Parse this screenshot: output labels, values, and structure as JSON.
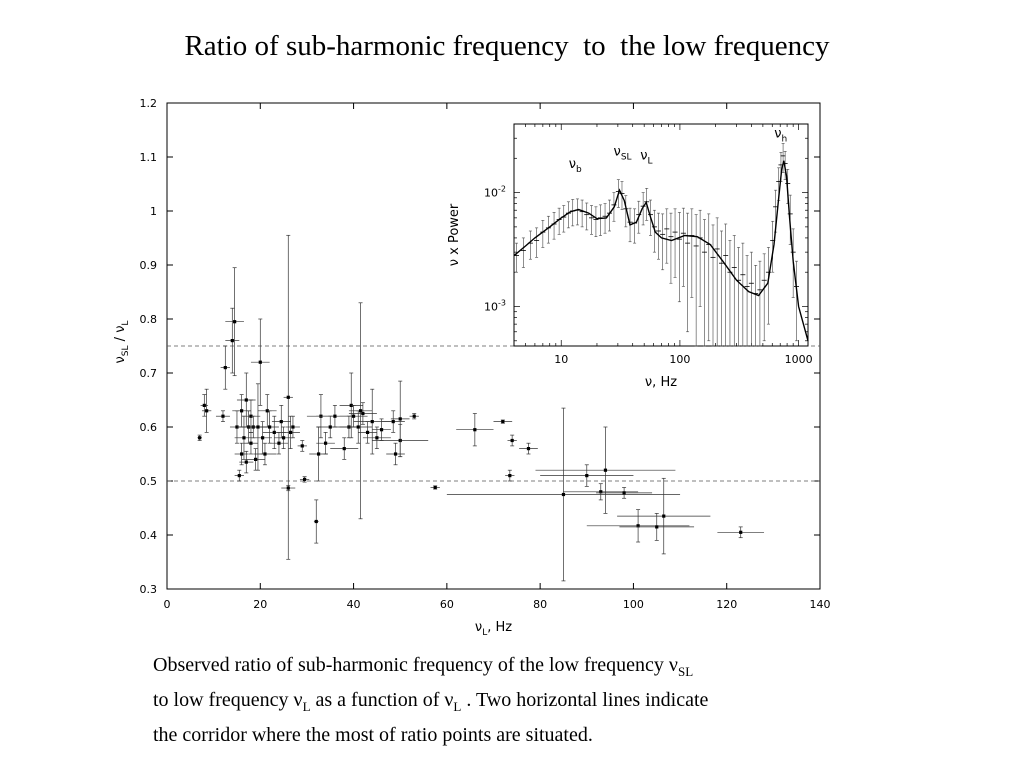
{
  "slide": {
    "title": "Ratio of sub-harmonic frequency  to  the low frequency",
    "caption": {
      "line1_a": "Observed ratio of sub-harmonic frequency  of the low frequency ν",
      "line1_sub": "SL",
      "line2_a": "to  low frequency ν",
      "line2_sub1": "L",
      "line2_b": "  as a function of ν",
      "line2_sub2": "L",
      "line2_c": " . Two horizontal lines indicate",
      "line3": "the corridor where the most of ratio points are  situated."
    }
  },
  "chart_data": [
    {
      "type": "scatter",
      "title": "",
      "xlabel": "ν",
      "xlabel_sub": "L",
      "xlabel_suffix": ", Hz",
      "ylabel": "ν",
      "ylabel_sub1": "SL",
      "ylabel_mid": " / ν",
      "ylabel_sub2": "L",
      "xlim": [
        0,
        140
      ],
      "ylim": [
        0.3,
        1.2
      ],
      "xticks": [
        0,
        20,
        40,
        60,
        80,
        100,
        120,
        140
      ],
      "xtick_labels": [
        "0",
        "20",
        "40",
        "60",
        "80",
        "100",
        "120",
        "140"
      ],
      "yticks": [
        0.3,
        0.4,
        0.5,
        0.6,
        0.7,
        0.8,
        0.9,
        1,
        1.1,
        1.2
      ],
      "ytick_labels": [
        "0.3",
        "0.4",
        "0.5",
        "0.6",
        "0.7",
        "0.8",
        "0.9",
        "1",
        "1.1",
        "1.2"
      ],
      "reference_lines_y": [
        0.75,
        0.5
      ],
      "points": [
        {
          "x": 7.0,
          "y": 0.58,
          "xerr": 0.5,
          "yerr": 0.005
        },
        {
          "x": 8.0,
          "y": 0.64,
          "xerr": 0.8,
          "yerr": 0.02
        },
        {
          "x": 8.5,
          "y": 0.63,
          "xerr": 1.0,
          "yerr": 0.04
        },
        {
          "x": 12.0,
          "y": 0.62,
          "xerr": 1.5,
          "yerr": 0.01
        },
        {
          "x": 12.5,
          "y": 0.71,
          "xerr": 1.0,
          "yerr": 0.04
        },
        {
          "x": 14.0,
          "y": 0.76,
          "xerr": 1.5,
          "yerr": 0.06
        },
        {
          "x": 14.5,
          "y": 0.795,
          "xerr": 2.0,
          "yerr": 0.1
        },
        {
          "x": 15.0,
          "y": 0.6,
          "xerr": 1.5,
          "yerr": 0.03
        },
        {
          "x": 15.5,
          "y": 0.51,
          "xerr": 1.0,
          "yerr": 0.01
        },
        {
          "x": 16.0,
          "y": 0.63,
          "xerr": 2.0,
          "yerr": 0.03
        },
        {
          "x": 16.0,
          "y": 0.55,
          "xerr": 1.5,
          "yerr": 0.02
        },
        {
          "x": 16.5,
          "y": 0.58,
          "xerr": 2.0,
          "yerr": 0.04
        },
        {
          "x": 17.0,
          "y": 0.65,
          "xerr": 2.0,
          "yerr": 0.05
        },
        {
          "x": 17.0,
          "y": 0.535,
          "xerr": 1.5,
          "yerr": 0.02
        },
        {
          "x": 17.5,
          "y": 0.6,
          "xerr": 2.5,
          "yerr": 0.03
        },
        {
          "x": 18.0,
          "y": 0.62,
          "xerr": 2.0,
          "yerr": 0.03
        },
        {
          "x": 18.0,
          "y": 0.57,
          "xerr": 1.5,
          "yerr": 0.02
        },
        {
          "x": 18.5,
          "y": 0.6,
          "xerr": 3.0,
          "yerr": 0.02
        },
        {
          "x": 19.0,
          "y": 0.54,
          "xerr": 2.0,
          "yerr": 0.02
        },
        {
          "x": 19.5,
          "y": 0.6,
          "xerr": 2.0,
          "yerr": 0.08
        },
        {
          "x": 20.0,
          "y": 0.72,
          "xerr": 2.0,
          "yerr": 0.08
        },
        {
          "x": 20.5,
          "y": 0.58,
          "xerr": 2.0,
          "yerr": 0.03
        },
        {
          "x": 21.0,
          "y": 0.55,
          "xerr": 2.5,
          "yerr": 0.02
        },
        {
          "x": 21.5,
          "y": 0.63,
          "xerr": 2.0,
          "yerr": 0.03
        },
        {
          "x": 22.0,
          "y": 0.6,
          "xerr": 2.0,
          "yerr": 0.03
        },
        {
          "x": 23.0,
          "y": 0.59,
          "xerr": 2.5,
          "yerr": 0.03
        },
        {
          "x": 24.0,
          "y": 0.57,
          "xerr": 2.0,
          "yerr": 0.02
        },
        {
          "x": 24.5,
          "y": 0.61,
          "xerr": 2.0,
          "yerr": 0.03
        },
        {
          "x": 25.0,
          "y": 0.58,
          "xerr": 2.0,
          "yerr": 0.02
        },
        {
          "x": 26.0,
          "y": 0.655,
          "xerr": 1.0,
          "yerr": 0.3
        },
        {
          "x": 26.5,
          "y": 0.59,
          "xerr": 2.0,
          "yerr": 0.03
        },
        {
          "x": 26.0,
          "y": 0.487,
          "xerr": 1.5,
          "yerr": 0.005
        },
        {
          "x": 27.0,
          "y": 0.6,
          "xerr": 1.5,
          "yerr": 0.02
        },
        {
          "x": 29.0,
          "y": 0.565,
          "xerr": 1.0,
          "yerr": 0.01
        },
        {
          "x": 29.5,
          "y": 0.503,
          "xerr": 1.0,
          "yerr": 0.005
        },
        {
          "x": 32.0,
          "y": 0.425,
          "xerr": 0.5,
          "yerr": 0.04
        },
        {
          "x": 32.5,
          "y": 0.55,
          "xerr": 2.0,
          "yerr": 0.05
        },
        {
          "x": 33.0,
          "y": 0.62,
          "xerr": 3.0,
          "yerr": 0.04
        },
        {
          "x": 34.0,
          "y": 0.57,
          "xerr": 2.0,
          "yerr": 0.02
        },
        {
          "x": 35.0,
          "y": 0.6,
          "xerr": 3.0,
          "yerr": 0.02
        },
        {
          "x": 36.0,
          "y": 0.62,
          "xerr": 4.0,
          "yerr": 0.02
        },
        {
          "x": 38.0,
          "y": 0.56,
          "xerr": 3.0,
          "yerr": 0.02
        },
        {
          "x": 39.0,
          "y": 0.6,
          "xerr": 2.0,
          "yerr": 0.02
        },
        {
          "x": 39.5,
          "y": 0.64,
          "xerr": 2.5,
          "yerr": 0.06
        },
        {
          "x": 40.0,
          "y": 0.62,
          "xerr": 3.0,
          "yerr": 0.02
        },
        {
          "x": 41.0,
          "y": 0.6,
          "xerr": 3.0,
          "yerr": 0.03
        },
        {
          "x": 41.5,
          "y": 0.63,
          "xerr": 2.5,
          "yerr": 0.2
        },
        {
          "x": 42.0,
          "y": 0.625,
          "xerr": 3.0,
          "yerr": 0.02
        },
        {
          "x": 43.0,
          "y": 0.59,
          "xerr": 2.0,
          "yerr": 0.02
        },
        {
          "x": 44.0,
          "y": 0.61,
          "xerr": 4.0,
          "yerr": 0.06
        },
        {
          "x": 45.0,
          "y": 0.58,
          "xerr": 3.0,
          "yerr": 0.02
        },
        {
          "x": 46.0,
          "y": 0.595,
          "xerr": 2.0,
          "yerr": 0.02
        },
        {
          "x": 48.5,
          "y": 0.61,
          "xerr": 2.5,
          "yerr": 0.02
        },
        {
          "x": 49.0,
          "y": 0.55,
          "xerr": 2.0,
          "yerr": 0.02
        },
        {
          "x": 50.0,
          "y": 0.575,
          "xerr": 6.0,
          "yerr": 0.03
        },
        {
          "x": 50.0,
          "y": 0.615,
          "xerr": 2.0,
          "yerr": 0.07
        },
        {
          "x": 53.0,
          "y": 0.62,
          "xerr": 1.0,
          "yerr": 0.005
        },
        {
          "x": 57.5,
          "y": 0.488,
          "xerr": 1.0,
          "yerr": 0.003
        },
        {
          "x": 66.0,
          "y": 0.595,
          "xerr": 4.0,
          "yerr": 0.03
        },
        {
          "x": 72.0,
          "y": 0.61,
          "xerr": 2.0,
          "yerr": 0.003
        },
        {
          "x": 73.5,
          "y": 0.51,
          "xerr": 1.0,
          "yerr": 0.01
        },
        {
          "x": 74.0,
          "y": 0.575,
          "xerr": 1.0,
          "yerr": 0.01
        },
        {
          "x": 77.5,
          "y": 0.56,
          "xerr": 2.0,
          "yerr": 0.01
        },
        {
          "x": 85.0,
          "y": 0.475,
          "xerr": 25.0,
          "yerr": 0.16
        },
        {
          "x": 90.0,
          "y": 0.51,
          "xerr": 10.0,
          "yerr": 0.02
        },
        {
          "x": 94.0,
          "y": 0.52,
          "xerr": 15.0,
          "yerr": 0.08
        },
        {
          "x": 93.0,
          "y": 0.48,
          "xerr": 8.0,
          "yerr": 0.015
        },
        {
          "x": 98.0,
          "y": 0.478,
          "xerr": 6.0,
          "yerr": 0.01
        },
        {
          "x": 101.0,
          "y": 0.417,
          "xerr": 11.0,
          "yerr": 0.03
        },
        {
          "x": 105.0,
          "y": 0.415,
          "xerr": 8.0,
          "yerr": 0.025
        },
        {
          "x": 106.5,
          "y": 0.435,
          "xerr": 10.0,
          "yerr": 0.07
        },
        {
          "x": 123.0,
          "y": 0.405,
          "xerr": 5.0,
          "yerr": 0.01
        }
      ]
    },
    {
      "type": "line",
      "title": "",
      "inset": true,
      "xlabel": "ν, Hz",
      "ylabel": "ν x Power",
      "xscale": "log",
      "yscale": "log",
      "xlim": [
        4,
        1200
      ],
      "ylim": [
        0.00045,
        0.04
      ],
      "xticks": [
        10,
        100,
        1000
      ],
      "xtick_labels": [
        "10",
        "100",
        "1000"
      ],
      "yticks": [
        0.001,
        0.01
      ],
      "ytick_base": "10",
      "ytick_exponents": [
        "-3",
        "-2"
      ],
      "annotations": [
        {
          "text": "ν",
          "sub": "b",
          "x": 13
        },
        {
          "text": "ν",
          "sub": "SL",
          "x": 31
        },
        {
          "text": "ν",
          "sub": "L",
          "x": 52
        },
        {
          "text": "ν",
          "sub": "h",
          "x": 700
        }
      ],
      "model_curve": {
        "x": [
          4,
          5,
          6,
          8,
          10,
          12,
          14,
          17,
          20,
          24,
          28,
          31,
          34,
          38,
          43,
          48,
          52,
          56,
          62,
          70,
          85,
          110,
          140,
          180,
          230,
          300,
          380,
          460,
          550,
          620,
          680,
          720,
          750,
          790,
          840,
          900,
          1000,
          1200
        ],
        "y": [
          0.0028,
          0.0034,
          0.004,
          0.005,
          0.006,
          0.0068,
          0.0071,
          0.0066,
          0.0059,
          0.006,
          0.0075,
          0.0105,
          0.0085,
          0.0052,
          0.0055,
          0.0072,
          0.0082,
          0.0063,
          0.0045,
          0.004,
          0.0038,
          0.0042,
          0.0041,
          0.0035,
          0.0025,
          0.0017,
          0.00135,
          0.00125,
          0.0016,
          0.0035,
          0.009,
          0.016,
          0.019,
          0.014,
          0.006,
          0.0025,
          0.001,
          0.0005
        ]
      },
      "points": [
        {
          "x": 4.2,
          "y": 0.0028,
          "yerr": 0.0008
        },
        {
          "x": 4.8,
          "y": 0.0031,
          "yerr": 0.0009
        },
        {
          "x": 5.5,
          "y": 0.0036,
          "yerr": 0.001
        },
        {
          "x": 6.2,
          "y": 0.0038,
          "yerr": 0.0011
        },
        {
          "x": 7.0,
          "y": 0.0045,
          "yerr": 0.0012
        },
        {
          "x": 7.8,
          "y": 0.0049,
          "yerr": 0.0013
        },
        {
          "x": 8.7,
          "y": 0.0053,
          "yerr": 0.0014
        },
        {
          "x": 9.6,
          "y": 0.0058,
          "yerr": 0.0015
        },
        {
          "x": 10.5,
          "y": 0.0061,
          "yerr": 0.0016
        },
        {
          "x": 11.5,
          "y": 0.0066,
          "yerr": 0.0017
        },
        {
          "x": 12.5,
          "y": 0.0069,
          "yerr": 0.0018
        },
        {
          "x": 13.7,
          "y": 0.007,
          "yerr": 0.0018
        },
        {
          "x": 15.0,
          "y": 0.0068,
          "yerr": 0.0018
        },
        {
          "x": 16.4,
          "y": 0.0064,
          "yerr": 0.0017
        },
        {
          "x": 18.0,
          "y": 0.006,
          "yerr": 0.0017
        },
        {
          "x": 19.6,
          "y": 0.0058,
          "yerr": 0.0017
        },
        {
          "x": 21.4,
          "y": 0.006,
          "yerr": 0.0018
        },
        {
          "x": 23.4,
          "y": 0.0062,
          "yerr": 0.0018
        },
        {
          "x": 25.5,
          "y": 0.0066,
          "yerr": 0.002
        },
        {
          "x": 27.8,
          "y": 0.0078,
          "yerr": 0.0022
        },
        {
          "x": 30.3,
          "y": 0.0102,
          "yerr": 0.0028
        },
        {
          "x": 32.5,
          "y": 0.0098,
          "yerr": 0.0027
        },
        {
          "x": 35.0,
          "y": 0.0072,
          "yerr": 0.0022
        },
        {
          "x": 38.0,
          "y": 0.0055,
          "yerr": 0.0018
        },
        {
          "x": 41.5,
          "y": 0.0054,
          "yerr": 0.0018
        },
        {
          "x": 45.0,
          "y": 0.0064,
          "yerr": 0.002
        },
        {
          "x": 49.0,
          "y": 0.0076,
          "yerr": 0.0024
        },
        {
          "x": 52.5,
          "y": 0.0083,
          "yerr": 0.0026
        },
        {
          "x": 56.5,
          "y": 0.0064,
          "yerr": 0.0022
        },
        {
          "x": 61.0,
          "y": 0.005,
          "yerr": 0.002
        },
        {
          "x": 66.0,
          "y": 0.0046,
          "yerr": 0.002
        },
        {
          "x": 71.5,
          "y": 0.0043,
          "yerr": 0.0022
        },
        {
          "x": 77.5,
          "y": 0.0048,
          "yerr": 0.0024
        },
        {
          "x": 84.0,
          "y": 0.0041,
          "yerr": 0.0025
        },
        {
          "x": 91.0,
          "y": 0.0045,
          "yerr": 0.0027
        },
        {
          "x": 99.0,
          "y": 0.0039,
          "yerr": 0.0028
        },
        {
          "x": 107.0,
          "y": 0.0044,
          "yerr": 0.0029
        },
        {
          "x": 116.0,
          "y": 0.0036,
          "yerr": 0.003
        },
        {
          "x": 126.0,
          "y": 0.0042,
          "yerr": 0.003
        },
        {
          "x": 137.0,
          "y": 0.0034,
          "yerr": 0.003
        },
        {
          "x": 148.0,
          "y": 0.004,
          "yerr": 0.003
        },
        {
          "x": 161.0,
          "y": 0.003,
          "yerr": 0.0028
        },
        {
          "x": 175.0,
          "y": 0.0035,
          "yerr": 0.003
        },
        {
          "x": 190.0,
          "y": 0.0027,
          "yerr": 0.0025
        },
        {
          "x": 206.0,
          "y": 0.0032,
          "yerr": 0.0028
        },
        {
          "x": 224.0,
          "y": 0.0024,
          "yerr": 0.0022
        },
        {
          "x": 243.0,
          "y": 0.0028,
          "yerr": 0.0025
        },
        {
          "x": 264.0,
          "y": 0.002,
          "yerr": 0.0018
        },
        {
          "x": 287.0,
          "y": 0.0022,
          "yerr": 0.002
        },
        {
          "x": 312.0,
          "y": 0.0017,
          "yerr": 0.0016
        },
        {
          "x": 339.0,
          "y": 0.0019,
          "yerr": 0.0017
        },
        {
          "x": 368.0,
          "y": 0.0015,
          "yerr": 0.0013
        },
        {
          "x": 400.0,
          "y": 0.0016,
          "yerr": 0.0014
        },
        {
          "x": 435.0,
          "y": 0.0013,
          "yerr": 0.001
        },
        {
          "x": 472.0,
          "y": 0.0014,
          "yerr": 0.0011
        },
        {
          "x": 513.0,
          "y": 0.0017,
          "yerr": 0.0012
        },
        {
          "x": 557.0,
          "y": 0.002,
          "yerr": 0.0013
        },
        {
          "x": 605.0,
          "y": 0.0038,
          "yerr": 0.0018
        },
        {
          "x": 640.0,
          "y": 0.0075,
          "yerr": 0.003
        },
        {
          "x": 680.0,
          "y": 0.0125,
          "yerr": 0.004
        },
        {
          "x": 710.0,
          "y": 0.0175,
          "yerr": 0.005
        },
        {
          "x": 740.0,
          "y": 0.021,
          "yerr": 0.006
        },
        {
          "x": 770.0,
          "y": 0.018,
          "yerr": 0.005
        },
        {
          "x": 810.0,
          "y": 0.012,
          "yerr": 0.004
        },
        {
          "x": 850.0,
          "y": 0.0065,
          "yerr": 0.003
        },
        {
          "x": 900.0,
          "y": 0.003,
          "yerr": 0.0018
        },
        {
          "x": 960.0,
          "y": 0.0015,
          "yerr": 0.001
        }
      ]
    }
  ]
}
